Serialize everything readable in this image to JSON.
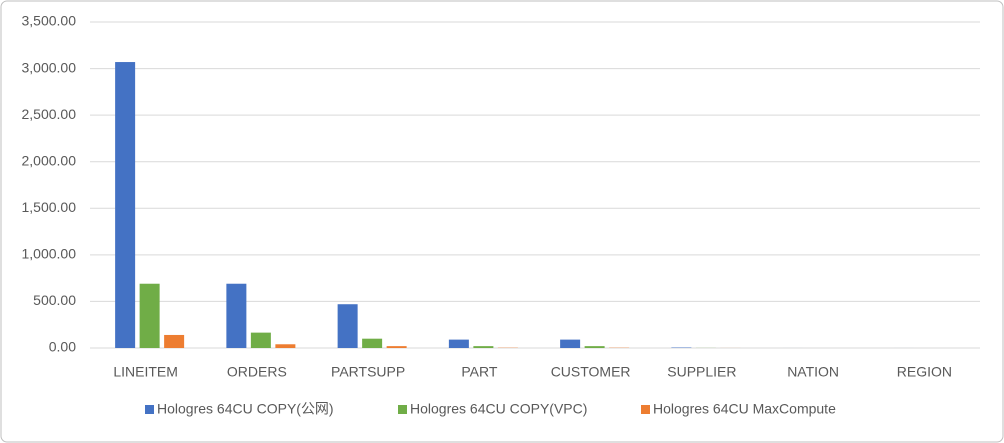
{
  "chart_data": {
    "type": "bar",
    "categories": [
      "LINEITEM",
      "ORDERS",
      "PARTSUPP",
      "PART",
      "CUSTOMER",
      "SUPPLIER",
      "NATION",
      "REGION"
    ],
    "series": [
      {
        "name": "Hologres 64CU COPY(公网)",
        "color": "#4472c4",
        "values": [
          3070,
          690,
          470,
          90,
          90,
          5,
          0.1,
          0.1
        ]
      },
      {
        "name": "Hologres 64CU COPY(VPC)",
        "color": "#70ad47",
        "values": [
          690,
          165,
          100,
          20,
          20,
          1,
          0.05,
          0.05
        ]
      },
      {
        "name": "Hologres 64CU MaxCompute",
        "color": "#ed7d31",
        "values": [
          140,
          40,
          20,
          3,
          3,
          0.5,
          0.02,
          0.02
        ]
      }
    ],
    "ylim": [
      0,
      3500
    ],
    "yticks": [
      {
        "value": 0,
        "label": "0.00"
      },
      {
        "value": 500,
        "label": "500.00"
      },
      {
        "value": 1000,
        "label": "1,000.00"
      },
      {
        "value": 1500,
        "label": "1,500.00"
      },
      {
        "value": 2000,
        "label": "2,000.00"
      },
      {
        "value": 2500,
        "label": "2,500.00"
      },
      {
        "value": 3000,
        "label": "3,000.00"
      },
      {
        "value": 3500,
        "label": "3,500.00"
      }
    ],
    "grid": true,
    "legend": "bottom"
  }
}
